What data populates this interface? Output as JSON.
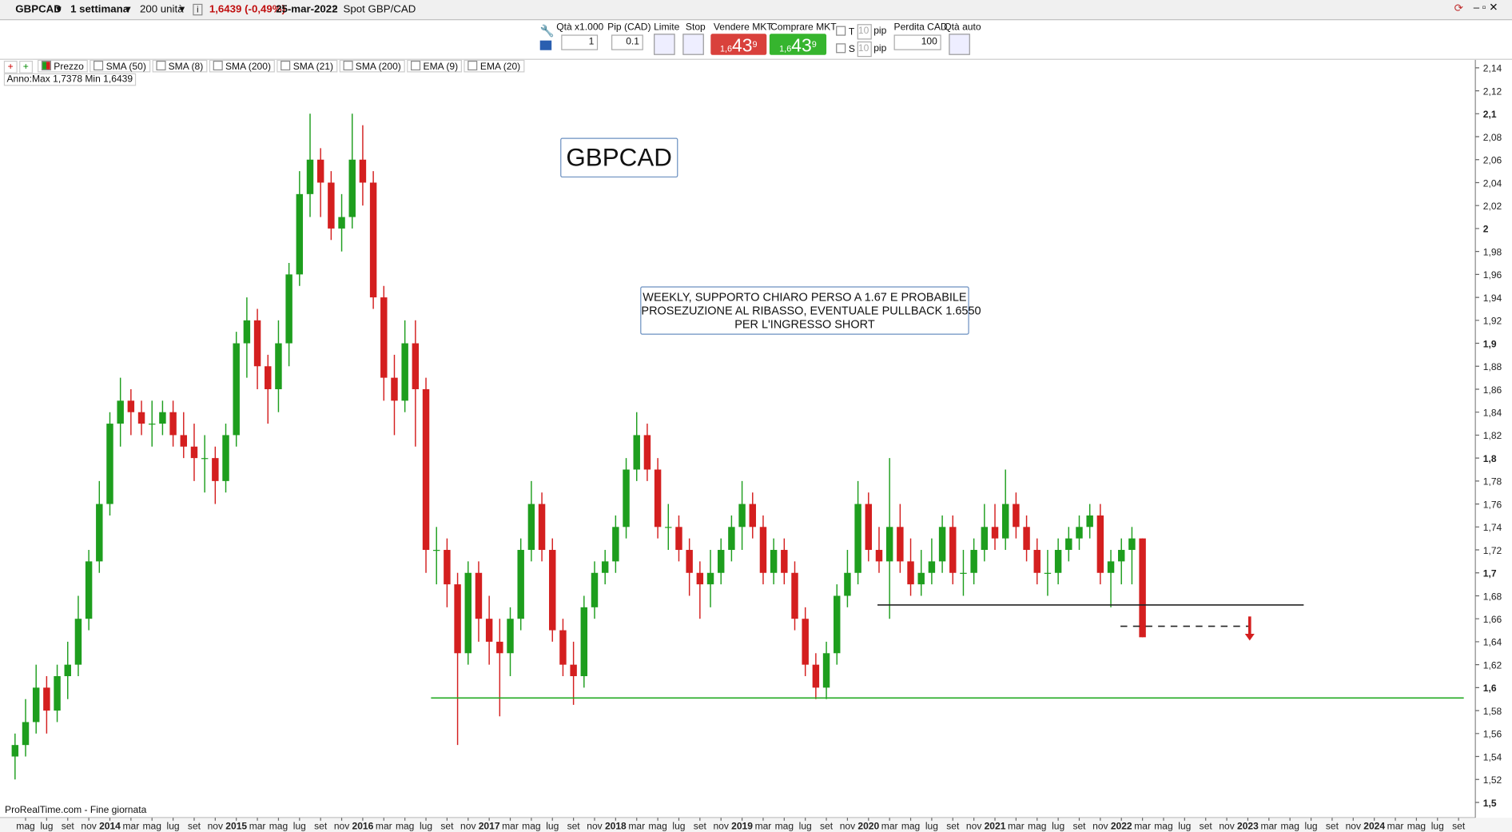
{
  "toolbar": {
    "symbol": "GBPCAD",
    "period": "1 settimana",
    "units": "200 unità",
    "price_change": "1,6439 (-0,49%)",
    "date": "25-mar-2022",
    "instrument": "Spot GBP/CAD"
  },
  "order_panel": {
    "qty_label": "Qtà x1.000",
    "pip_label": "Pip (CAD)",
    "qty": "1",
    "pip": "0.1",
    "limit": "Limite",
    "stop": "Stop",
    "sell_label": "Vendere MKT",
    "buy_label": "Comprare MKT",
    "sell_price": {
      "prefix": "1,6",
      "big": "43",
      "small": "9"
    },
    "buy_price": {
      "prefix": "1,6",
      "big": "43",
      "small": "9"
    },
    "t": "T",
    "s": "S",
    "t_pips": "10",
    "s_pips": "10",
    "t_unit": "pip",
    "s_unit": "pip",
    "loss_label": "Perdita CAD",
    "loss": "100",
    "auto_qty": "Qtà auto"
  },
  "indicators": [
    "Prezzo",
    "SMA (50)",
    "SMA (8)",
    "SMA (200)",
    "SMA (21)",
    "SMA (200)",
    "EMA (9)",
    "EMA (20)"
  ],
  "range_info": "Anno:Max 1,7378 Min 1,6439",
  "footer": "ProRealTime.com - Fine giornata",
  "chart_data": {
    "type": "candlestick",
    "up_color": "#1e9e1e",
    "down_color": "#d41f1f",
    "title_box": "GBPCAD",
    "note_lines": [
      "WEEKLY, SUPPORTO CHIARO PERSO A 1.67 E PROBABILE",
      "PROSEZUZIONE AL RIBASSO, EVENTUALE PULLBACK 1.6550",
      "PER L'INGRESSO SHORT"
    ],
    "categories": [
      null,
      "mag",
      null,
      "lug",
      null,
      "set",
      null,
      "nov",
      null,
      "2014",
      null,
      "mar",
      null,
      "mag",
      null,
      "lug",
      null,
      "set",
      null,
      "nov",
      null,
      "2015",
      null,
      "mar",
      null,
      "mag",
      null,
      "lug",
      null,
      "set",
      null,
      "nov",
      null,
      "2016",
      null,
      "mar",
      null,
      "mag",
      null,
      "lug",
      null,
      "set",
      null,
      "nov",
      null,
      "2017",
      null,
      "mar",
      null,
      "mag",
      null,
      "lug",
      null,
      "set",
      null,
      "nov",
      null,
      "2018",
      null,
      "mar",
      null,
      "mag",
      null,
      "lug",
      null,
      "set",
      null,
      "nov",
      null,
      "2019",
      null,
      "mar",
      null,
      "mag",
      null,
      "lug",
      null,
      "set",
      null,
      "nov",
      null,
      "2020",
      null,
      "mar",
      null,
      "mag",
      null,
      "lug",
      null,
      "set",
      null,
      "nov",
      null,
      "2021",
      null,
      "mar",
      null,
      "mag",
      null,
      "lug",
      null,
      "set",
      null,
      "nov",
      null,
      "2022",
      null,
      "mar",
      null,
      "mag",
      null,
      "lug",
      null,
      "set",
      null,
      "nov",
      null,
      "2023",
      null,
      "mar",
      null,
      "mag",
      null,
      "lug",
      null,
      "set",
      null,
      "nov",
      null,
      "2024",
      null,
      "mar",
      null,
      "mag",
      null,
      "lug",
      null,
      "set",
      null
    ],
    "open": [
      1.54,
      1.55,
      1.57,
      1.6,
      1.58,
      1.61,
      1.62,
      1.66,
      1.71,
      1.76,
      1.83,
      1.85,
      1.84,
      1.83,
      1.83,
      1.84,
      1.82,
      1.81,
      1.8,
      1.8,
      1.78,
      1.82,
      1.9,
      1.92,
      1.88,
      1.86,
      1.9,
      1.96,
      2.03,
      2.06,
      2.04,
      2.0,
      2.01,
      2.06,
      2.04,
      1.94,
      1.87,
      1.85,
      1.9,
      1.86,
      1.72,
      1.72,
      1.69,
      1.63,
      1.7,
      1.66,
      1.64,
      1.63,
      1.66,
      1.72,
      1.76,
      1.72,
      1.65,
      1.62,
      1.61,
      1.67,
      1.7,
      1.71,
      1.74,
      1.79,
      1.82,
      1.79,
      1.74,
      1.74,
      1.72,
      1.7,
      1.69,
      1.7,
      1.72,
      1.74,
      1.76,
      1.74,
      1.7,
      1.72,
      1.7,
      1.66,
      1.62,
      1.6,
      1.63,
      1.68,
      1.7,
      1.76,
      1.72,
      1.71,
      1.74,
      1.71,
      1.69,
      1.7,
      1.71,
      1.74,
      1.7,
      1.7,
      1.72,
      1.74,
      1.73,
      1.76,
      1.74,
      1.72,
      1.7,
      1.7,
      1.72,
      1.73,
      1.74,
      1.75,
      1.7,
      1.71,
      1.72,
      1.73,
      null,
      null,
      null,
      null,
      null,
      null,
      null,
      null,
      null,
      null,
      null,
      null,
      null,
      null,
      null,
      null,
      null,
      null,
      null,
      null,
      null,
      null,
      null,
      null,
      null,
      null,
      null,
      null,
      null,
      null,
      null
    ],
    "high": [
      1.56,
      1.59,
      1.62,
      1.61,
      1.62,
      1.64,
      1.68,
      1.72,
      1.78,
      1.84,
      1.87,
      1.86,
      1.85,
      1.85,
      1.85,
      1.85,
      1.84,
      1.83,
      1.82,
      1.81,
      1.83,
      1.91,
      1.94,
      1.93,
      1.89,
      1.92,
      1.97,
      2.05,
      2.1,
      2.07,
      2.05,
      2.03,
      2.1,
      2.09,
      2.05,
      1.95,
      1.89,
      1.92,
      1.92,
      1.87,
      1.74,
      1.73,
      1.7,
      1.71,
      1.71,
      1.68,
      1.66,
      1.67,
      1.73,
      1.78,
      1.77,
      1.73,
      1.66,
      1.64,
      1.68,
      1.71,
      1.72,
      1.75,
      1.8,
      1.84,
      1.83,
      1.8,
      1.76,
      1.75,
      1.73,
      1.71,
      1.72,
      1.73,
      1.75,
      1.78,
      1.77,
      1.75,
      1.73,
      1.73,
      1.71,
      1.67,
      1.63,
      1.64,
      1.69,
      1.72,
      1.78,
      1.77,
      1.74,
      1.8,
      1.76,
      1.73,
      1.72,
      1.73,
      1.75,
      1.75,
      1.72,
      1.73,
      1.76,
      1.76,
      1.79,
      1.77,
      1.75,
      1.73,
      1.72,
      1.73,
      1.74,
      1.75,
      1.76,
      1.76,
      1.72,
      1.73,
      1.74,
      1.73,
      null,
      null,
      null,
      null,
      null,
      null,
      null,
      null,
      null,
      null,
      null,
      null,
      null,
      null,
      null,
      null,
      null,
      null,
      null,
      null,
      null,
      null,
      null,
      null,
      null,
      null,
      null,
      null,
      null,
      null,
      null
    ],
    "low": [
      1.52,
      1.54,
      1.56,
      1.56,
      1.57,
      1.59,
      1.61,
      1.65,
      1.7,
      1.75,
      1.81,
      1.82,
      1.82,
      1.81,
      1.82,
      1.81,
      1.8,
      1.78,
      1.77,
      1.76,
      1.77,
      1.81,
      1.87,
      1.86,
      1.83,
      1.84,
      1.88,
      1.95,
      2.01,
      2.01,
      1.99,
      1.98,
      2.0,
      2.02,
      1.93,
      1.85,
      1.82,
      1.84,
      1.81,
      1.7,
      1.69,
      1.67,
      1.55,
      1.62,
      1.64,
      1.62,
      1.575,
      1.61,
      1.65,
      1.71,
      1.71,
      1.64,
      1.61,
      1.585,
      1.6,
      1.66,
      1.69,
      1.7,
      1.73,
      1.78,
      1.78,
      1.73,
      1.72,
      1.71,
      1.68,
      1.66,
      1.67,
      1.69,
      1.71,
      1.72,
      1.73,
      1.69,
      1.69,
      1.69,
      1.65,
      1.61,
      1.59,
      1.59,
      1.62,
      1.67,
      1.69,
      1.71,
      1.7,
      1.66,
      1.7,
      1.68,
      1.68,
      1.69,
      1.7,
      1.69,
      1.68,
      1.69,
      1.71,
      1.72,
      1.72,
      1.73,
      1.71,
      1.69,
      1.68,
      1.69,
      1.71,
      1.72,
      1.73,
      1.69,
      1.67,
      1.69,
      1.69,
      1.6439,
      null,
      null,
      null,
      null,
      null,
      null,
      null,
      null,
      null,
      null,
      null,
      null,
      null,
      null,
      null,
      null,
      null,
      null,
      null,
      null,
      null,
      null,
      null,
      null,
      null,
      null,
      null,
      null,
      null,
      null,
      null
    ],
    "close": [
      1.55,
      1.57,
      1.6,
      1.58,
      1.61,
      1.62,
      1.66,
      1.71,
      1.76,
      1.83,
      1.85,
      1.84,
      1.83,
      1.83,
      1.84,
      1.82,
      1.81,
      1.8,
      1.8,
      1.78,
      1.82,
      1.9,
      1.92,
      1.88,
      1.86,
      1.9,
      1.96,
      2.03,
      2.06,
      2.04,
      2.0,
      2.01,
      2.06,
      2.04,
      1.94,
      1.87,
      1.85,
      1.9,
      1.86,
      1.72,
      1.72,
      1.69,
      1.63,
      1.7,
      1.66,
      1.64,
      1.63,
      1.66,
      1.72,
      1.76,
      1.72,
      1.65,
      1.62,
      1.61,
      1.67,
      1.7,
      1.71,
      1.74,
      1.79,
      1.82,
      1.79,
      1.74,
      1.74,
      1.72,
      1.7,
      1.69,
      1.7,
      1.72,
      1.74,
      1.76,
      1.74,
      1.7,
      1.72,
      1.7,
      1.66,
      1.62,
      1.6,
      1.63,
      1.68,
      1.7,
      1.76,
      1.72,
      1.71,
      1.74,
      1.71,
      1.69,
      1.7,
      1.71,
      1.74,
      1.7,
      1.7,
      1.72,
      1.74,
      1.73,
      1.76,
      1.74,
      1.72,
      1.7,
      1.7,
      1.72,
      1.73,
      1.74,
      1.75,
      1.7,
      1.71,
      1.72,
      1.73,
      1.6439,
      null,
      null,
      null,
      null,
      null,
      null,
      null,
      null,
      null,
      null,
      null,
      null,
      null,
      null,
      null,
      null,
      null,
      null,
      null,
      null,
      null,
      null,
      null,
      null,
      null,
      null,
      null,
      null,
      null,
      null,
      null
    ],
    "ylim": [
      1.4866,
      2.147
    ],
    "yticks": [
      {
        "value": 1.5,
        "label": "1,5"
      },
      {
        "value": 1.52,
        "label": "1,52"
      },
      {
        "value": 1.54,
        "label": "1,54"
      },
      {
        "value": 1.56,
        "label": "1,56"
      },
      {
        "value": 1.58,
        "label": "1,58"
      },
      {
        "value": 1.6,
        "label": "1,6"
      },
      {
        "value": 1.62,
        "label": "1,62"
      },
      {
        "value": 1.64,
        "label": "1,64"
      },
      {
        "value": 1.66,
        "label": "1,66"
      },
      {
        "value": 1.68,
        "label": "1,68"
      },
      {
        "value": 1.7,
        "label": "1,7"
      },
      {
        "value": 1.72,
        "label": "1,72"
      },
      {
        "value": 1.74,
        "label": "1,74"
      },
      {
        "value": 1.76,
        "label": "1,76"
      },
      {
        "value": 1.78,
        "label": "1,78"
      },
      {
        "value": 1.8,
        "label": "1,8"
      },
      {
        "value": 1.82,
        "label": "1,82"
      },
      {
        "value": 1.84,
        "label": "1,84"
      },
      {
        "value": 1.86,
        "label": "1,86"
      },
      {
        "value": 1.88,
        "label": "1,88"
      },
      {
        "value": 1.9,
        "label": "1,9"
      },
      {
        "value": 1.92,
        "label": "1,92"
      },
      {
        "value": 1.94,
        "label": "1,94"
      },
      {
        "value": 1.96,
        "label": "1,96"
      },
      {
        "value": 1.98,
        "label": "1,98"
      },
      2,
      {
        "value": 2.02,
        "label": "2,02"
      },
      {
        "value": 2.04,
        "label": "2,04"
      },
      {
        "value": 2.06,
        "label": "2,06"
      },
      {
        "value": 2.08,
        "label": "2,08"
      },
      {
        "value": 2.1,
        "label": "2,1"
      },
      {
        "value": 2.12,
        "label": "2,12"
      },
      {
        "value": 2.14,
        "label": "2,14"
      }
    ],
    "levels": [
      {
        "value": 1.672,
        "color": "#222222",
        "dashed": false
      },
      {
        "value": 1.591,
        "color": "#22aa22",
        "dashed": false
      },
      {
        "value": 1.6535,
        "color": "#222222",
        "dashed": true
      }
    ],
    "arrow": {
      "from": 1.662,
      "to": 1.641,
      "color": "#d41f1f"
    }
  }
}
